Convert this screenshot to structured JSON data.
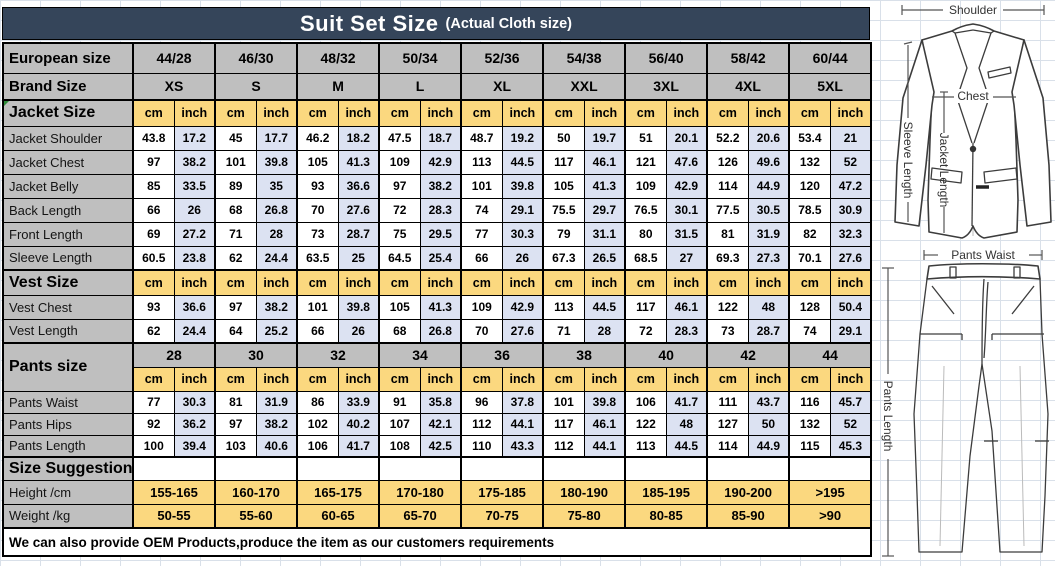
{
  "title": {
    "main": "Suit Set Size",
    "sub": "(Actual Cloth size)"
  },
  "colors": {
    "header_bar": "#35455a",
    "section_gray": "#bfbfbf",
    "unit_yellow": "#fbd87f",
    "inch_blue": "#dce2f2",
    "border": "#000000",
    "flag_green": "#2e8b3a"
  },
  "table": {
    "european": {
      "label": "European size",
      "values": [
        "44/28",
        "46/30",
        "48/32",
        "50/34",
        "52/36",
        "54/38",
        "56/40",
        "58/42",
        "60/44"
      ]
    },
    "brand": {
      "label": "Brand Size",
      "values": [
        "XS",
        "S",
        "M",
        "L",
        "XL",
        "XXL",
        "3XL",
        "4XL",
        "5XL"
      ]
    },
    "units": {
      "cm": "cm",
      "inch": "inch"
    },
    "sections": [
      {
        "label": "Jacket Size",
        "rows": [
          {
            "label": "Jacket Shoulder",
            "cm": [
              43.8,
              45,
              46.2,
              47.5,
              48.7,
              50,
              51,
              52.2,
              53.4
            ],
            "inch": [
              17.2,
              17.7,
              18.2,
              18.7,
              19.2,
              19.7,
              20.1,
              20.6,
              21
            ]
          },
          {
            "label": "Jacket Chest",
            "cm": [
              97,
              101,
              105,
              109,
              113,
              117,
              121,
              126,
              132
            ],
            "inch": [
              38.2,
              39.8,
              41.3,
              42.9,
              44.5,
              46.1,
              47.6,
              49.6,
              52
            ]
          },
          {
            "label": "Jacket Belly",
            "cm": [
              85,
              89,
              93,
              97,
              101,
              105,
              109,
              114,
              120
            ],
            "inch": [
              33.5,
              35,
              36.6,
              38.2,
              39.8,
              41.3,
              42.9,
              44.9,
              47.2
            ]
          },
          {
            "label": "Back Length",
            "cm": [
              66,
              68,
              70,
              72,
              74,
              75.5,
              76.5,
              77.5,
              78.5
            ],
            "inch": [
              26,
              26.8,
              27.6,
              28.3,
              29.1,
              29.7,
              30.1,
              30.5,
              30.9
            ]
          },
          {
            "label": "Front Length",
            "cm": [
              69,
              71,
              73,
              75,
              77,
              79,
              80,
              81,
              82
            ],
            "inch": [
              27.2,
              28,
              28.7,
              29.5,
              30.3,
              31.1,
              31.5,
              31.9,
              32.3
            ]
          },
          {
            "label": "Sleeve Length",
            "cm": [
              60.5,
              62,
              63.5,
              64.5,
              66,
              67.3,
              68.5,
              69.3,
              70.1
            ],
            "inch": [
              23.8,
              24.4,
              25,
              25.4,
              26,
              26.5,
              27,
              27.3,
              27.6
            ]
          }
        ]
      },
      {
        "label": "Vest Size",
        "rows": [
          {
            "label": "Vest Chest",
            "cm": [
              93,
              97,
              101,
              105,
              109,
              113,
              117,
              122,
              128
            ],
            "inch": [
              36.6,
              38.2,
              39.8,
              41.3,
              42.9,
              44.5,
              46.1,
              48,
              50.4
            ]
          },
          {
            "label": "Vest Length",
            "cm": [
              62,
              64,
              66,
              68,
              70,
              71,
              72,
              73,
              74
            ],
            "inch": [
              24.4,
              25.2,
              26,
              26.8,
              27.6,
              28,
              28.3,
              28.7,
              29.1
            ]
          }
        ]
      },
      {
        "label": "Pants size",
        "sizes": [
          "28",
          "30",
          "32",
          "34",
          "36",
          "38",
          "40",
          "42",
          "44"
        ],
        "rows": [
          {
            "label": "Pants Waist",
            "cm": [
              77,
              81,
              86,
              91,
              96,
              101,
              106,
              111,
              116
            ],
            "inch": [
              30.3,
              31.9,
              33.9,
              35.8,
              37.8,
              39.8,
              41.7,
              43.7,
              45.7
            ]
          },
          {
            "label": "Pants Hips",
            "cm": [
              92,
              97,
              102,
              107,
              112,
              117,
              122,
              127,
              132
            ],
            "inch": [
              36.2,
              38.2,
              40.2,
              42.1,
              44.1,
              46.1,
              48,
              50,
              52
            ]
          },
          {
            "label": "Pants Length",
            "cm": [
              100,
              103,
              106,
              108,
              110,
              112,
              113,
              114,
              115
            ],
            "inch": [
              39.4,
              40.6,
              41.7,
              42.5,
              43.3,
              44.1,
              44.5,
              44.9,
              45.3
            ]
          }
        ]
      }
    ],
    "suggestion": {
      "label": "Size Suggestion",
      "height": {
        "label": "Height /cm",
        "values": [
          "155-165",
          "160-170",
          "165-175",
          "170-180",
          "175-185",
          "180-190",
          "185-195",
          "190-200",
          ">195"
        ]
      },
      "weight": {
        "label": "Weight /kg",
        "values": [
          "50-55",
          "55-60",
          "60-65",
          "65-70",
          "70-75",
          "75-80",
          "80-85",
          "85-90",
          ">90"
        ]
      }
    },
    "footer_note": "We can also provide OEM Products,produce the item as our customers requirements"
  },
  "diagram": {
    "shoulder": "Shoulder",
    "chest": "Chest",
    "jacket_length": "Jacket Length",
    "sleeve_length": "Sleeve Length",
    "pants_waist": "Pants Waist",
    "pants_length": "Pants Length"
  }
}
